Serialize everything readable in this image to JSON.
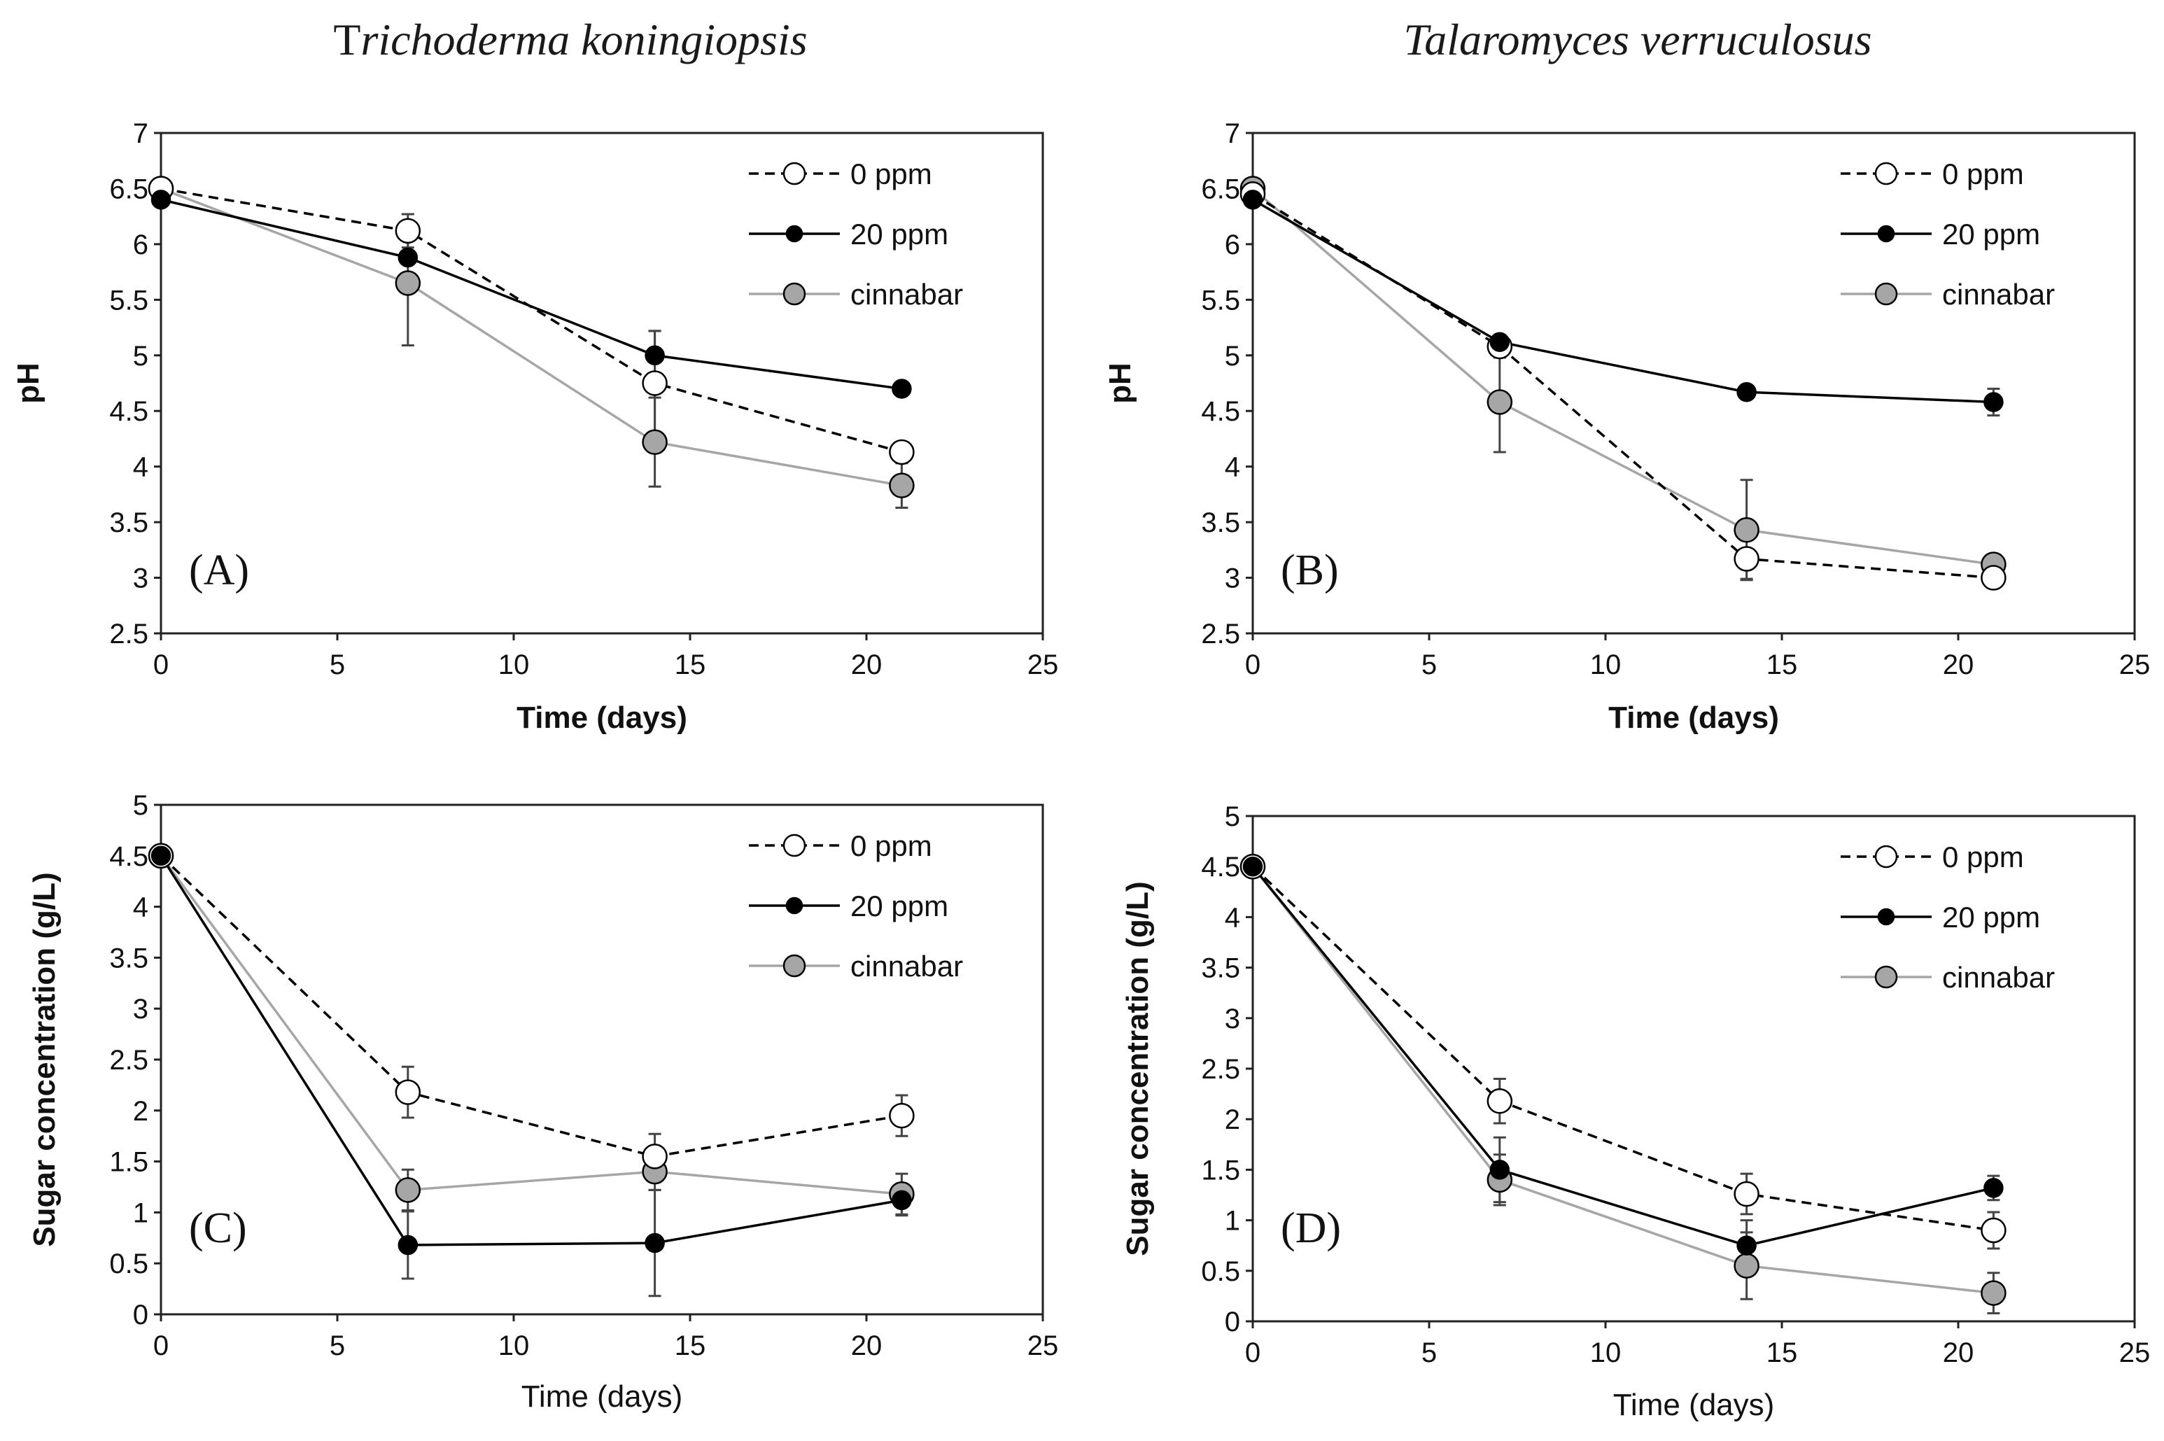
{
  "column_titles": {
    "left": {
      "prefix": "T",
      "italic": "richoderma koningiopsis"
    },
    "right": {
      "italic": "Talaromyces verruculosus"
    }
  },
  "colors": {
    "series_0ppm_line": "#000000",
    "series_0ppm_fill": "#ffffff",
    "series_20ppm_line": "#000000",
    "series_20ppm_fill": "#000000",
    "series_cinnabar_line": "#a6a6a6",
    "series_cinnabar_fill": "#a6a6a6",
    "marker_edge": "#000000"
  },
  "chart_data": [
    {
      "id": "A",
      "type": "line",
      "panel_label": "(A)",
      "title": "",
      "xlabel": "Time (days)",
      "ylabel": "pH",
      "xlim": [
        0,
        25
      ],
      "ylim": [
        2.5,
        7
      ],
      "xticks": [
        "0",
        "5",
        "10",
        "15",
        "20",
        "25"
      ],
      "yticks": [
        "2.5",
        "3",
        "3.5",
        "4",
        "4.5",
        "5",
        "5.5",
        "6",
        "6.5",
        "7"
      ],
      "legend_position": "top-right",
      "x": [
        0,
        7,
        14,
        21
      ],
      "series": [
        {
          "name": "0 ppm",
          "values": [
            6.5,
            6.12,
            4.75,
            4.13
          ],
          "errors": [
            0,
            0.15,
            0.47,
            0.05
          ]
        },
        {
          "name": "20 ppm",
          "values": [
            6.4,
            5.88,
            5.0,
            4.7
          ],
          "errors": [
            0,
            0.05,
            0.22,
            0.03
          ]
        },
        {
          "name": "cinnabar",
          "values": [
            6.5,
            5.65,
            4.22,
            3.83
          ],
          "errors": [
            0,
            0.56,
            0.4,
            0.2
          ]
        }
      ]
    },
    {
      "id": "B",
      "type": "line",
      "panel_label": "(B)",
      "title": "",
      "xlabel": "Time (days)",
      "ylabel": "pH",
      "xlim": [
        0,
        25
      ],
      "ylim": [
        2.5,
        7
      ],
      "xticks": [
        "0",
        "5",
        "10",
        "15",
        "20",
        "25"
      ],
      "yticks": [
        "2.5",
        "3",
        "3.5",
        "4",
        "4.5",
        "5",
        "5.5",
        "6",
        "6.5",
        "7"
      ],
      "legend_position": "top-right",
      "x": [
        0,
        7,
        14,
        21
      ],
      "series": [
        {
          "name": "0 ppm",
          "values": [
            6.45,
            5.08,
            3.17,
            3.0
          ],
          "errors": [
            0,
            0.1,
            0.18,
            0.03
          ]
        },
        {
          "name": "20 ppm",
          "values": [
            6.4,
            5.12,
            4.67,
            4.58
          ],
          "errors": [
            0,
            0.05,
            0.04,
            0.12
          ]
        },
        {
          "name": "cinnabar",
          "values": [
            6.5,
            4.58,
            3.43,
            3.12
          ],
          "errors": [
            0,
            0.45,
            0.45,
            0.04
          ]
        }
      ]
    },
    {
      "id": "C",
      "type": "line",
      "panel_label": "(C)",
      "title": "",
      "xlabel": "Time (days)",
      "ylabel": "Sugar concentration (g/L)",
      "xlim": [
        0,
        25
      ],
      "ylim": [
        0,
        5
      ],
      "xticks": [
        "0",
        "5",
        "10",
        "15",
        "20",
        "25"
      ],
      "yticks": [
        "0",
        "0.5",
        "1",
        "1.5",
        "2",
        "2.5",
        "3",
        "3.5",
        "4",
        "4.5",
        "5"
      ],
      "legend_position": "top-right",
      "x": [
        0,
        7,
        14,
        21
      ],
      "series": [
        {
          "name": "0 ppm",
          "values": [
            4.5,
            2.18,
            1.55,
            1.95
          ],
          "errors": [
            0,
            0.25,
            0.22,
            0.2
          ]
        },
        {
          "name": "20 ppm",
          "values": [
            4.5,
            0.68,
            0.7,
            1.12
          ],
          "errors": [
            0,
            0.33,
            0.52,
            0.15
          ]
        },
        {
          "name": "cinnabar",
          "values": [
            4.5,
            1.22,
            1.4,
            1.18
          ],
          "errors": [
            0,
            0.2,
            0.18,
            0.2
          ]
        }
      ]
    },
    {
      "id": "D",
      "type": "line",
      "panel_label": "(D)",
      "title": "",
      "xlabel": "Time (days)",
      "ylabel": "Sugar concentration (g/L)",
      "xlim": [
        0,
        25
      ],
      "ylim": [
        0,
        5
      ],
      "xticks": [
        "0",
        "5",
        "10",
        "15",
        "20",
        "25"
      ],
      "yticks": [
        "0",
        "0.5",
        "1",
        "1.5",
        "2",
        "2.5",
        "3",
        "3.5",
        "4",
        "4.5",
        "5"
      ],
      "legend_position": "top-right",
      "x": [
        0,
        7,
        14,
        21
      ],
      "series": [
        {
          "name": "0 ppm",
          "values": [
            4.5,
            2.18,
            1.26,
            0.9
          ],
          "errors": [
            0,
            0.22,
            0.2,
            0.18
          ]
        },
        {
          "name": "20 ppm",
          "values": [
            4.5,
            1.5,
            0.75,
            1.32
          ],
          "errors": [
            0,
            0.32,
            0.25,
            0.12
          ]
        },
        {
          "name": "cinnabar",
          "values": [
            4.5,
            1.4,
            0.55,
            0.28
          ],
          "errors": [
            0,
            0.25,
            0.33,
            0.2
          ]
        }
      ]
    }
  ]
}
